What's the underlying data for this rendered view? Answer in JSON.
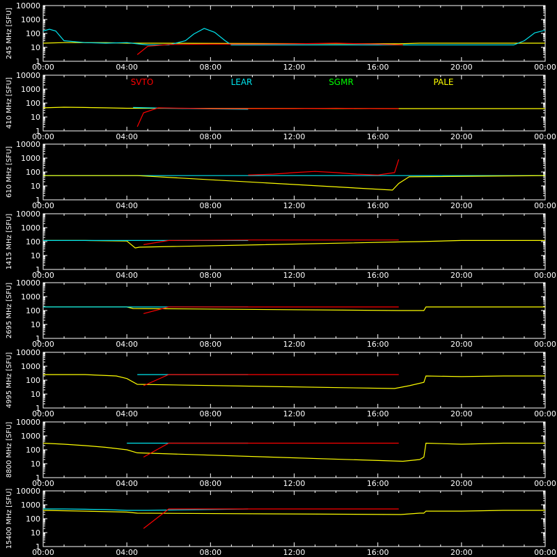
{
  "chart_data": {
    "type": "line",
    "y_scale": "log",
    "ylim": [
      1,
      10000
    ],
    "y_ticks": [
      1,
      10,
      100,
      1000,
      10000
    ],
    "y_tick_labels": [
      "1",
      "10",
      "100",
      "1000",
      "10000"
    ],
    "x_ticks": [
      "00:00",
      "04:00",
      "08:00",
      "12:00",
      "16:00",
      "20:00",
      "00:00"
    ],
    "stations": [
      {
        "name": "SVTO",
        "color": "#ff0000"
      },
      {
        "name": "LEAR",
        "color": "#00e5ee"
      },
      {
        "name": "SGMR",
        "color": "#00ff00"
      },
      {
        "name": "PALE",
        "color": "#ffff00"
      }
    ],
    "panels": [
      {
        "ylabel": "245 MHz [SFU]",
        "series": [
          {
            "station": "PALE",
            "x": [
              0.0,
              1.0,
              2.0,
              3.0,
              4.0,
              4.5,
              17.0,
              18.0,
              20.0,
              22.0,
              23.0,
              24.0
            ],
            "y": [
              20,
              22,
              22,
              22,
              20,
              20,
              18,
              20,
              20,
              20,
              20,
              20
            ]
          },
          {
            "station": "LEAR",
            "x": [
              0.0,
              0.3,
              0.6,
              1.0,
              2.0,
              3.0,
              4.0,
              4.5,
              5.0,
              6.0,
              6.8,
              7.2,
              7.7,
              8.2,
              8.7,
              9.0,
              10.0,
              22.5,
              23.0,
              23.5,
              24.0
            ],
            "y": [
              150,
              200,
              150,
              30,
              22,
              20,
              22,
              18,
              15,
              15,
              30,
              90,
              230,
              120,
              30,
              15,
              15,
              15,
              30,
              110,
              170
            ]
          },
          {
            "station": "SVTO",
            "x": [
              4.5,
              5.0,
              6.0,
              8.0,
              10.0,
              12.0,
              14.0,
              16.0,
              17.2
            ],
            "y": [
              3,
              12,
              16,
              17,
              17,
              18,
              20,
              17,
              15
            ]
          }
        ]
      },
      {
        "ylabel": "410 MHz [SFU]",
        "series": [
          {
            "station": "PALE",
            "x": [
              0.0,
              1.0,
              2.0,
              3.0,
              4.0,
              4.3,
              17.2,
              18.0,
              20.0,
              22.0,
              24.0
            ],
            "y": [
              45,
              50,
              48,
              45,
              42,
              42,
              40,
              40,
              40,
              40,
              40
            ]
          },
          {
            "station": "LEAR",
            "x": [
              4.3,
              5.0,
              6.0,
              8.0,
              9.8
            ],
            "y": [
              48,
              45,
              42,
              38,
              36
            ]
          },
          {
            "station": "SVTO",
            "x": [
              4.5,
              4.8,
              5.5,
              8.0,
              10.0,
              12.0,
              14.0,
              16.0,
              17.0
            ],
            "y": [
              2,
              20,
              45,
              40,
              40,
              40,
              42,
              40,
              40
            ]
          }
        ]
      },
      {
        "ylabel": "610 MHz [SFU]",
        "series": [
          {
            "station": "LEAR",
            "x": [
              0.0,
              2.0,
              4.0,
              6.0,
              8.0,
              9.8,
              17.5,
              20.0,
              22.0,
              24.0
            ],
            "y": [
              55,
              55,
              55,
              55,
              55,
              55,
              55,
              55,
              55,
              55
            ]
          },
          {
            "station": "SVTO",
            "x": [
              9.8,
              11.0,
              12.0,
              13.0,
              14.0,
              15.0,
              16.0,
              16.8,
              17.0
            ],
            "y": [
              60,
              70,
              90,
              110,
              90,
              70,
              60,
              90,
              800
            ]
          },
          {
            "station": "PALE",
            "x": [
              0.0,
              4.0,
              4.5,
              16.7,
              17.0,
              17.5,
              24.0
            ],
            "y": [
              55,
              55,
              55,
              5,
              15,
              45,
              55
            ]
          }
        ]
      },
      {
        "ylabel": "1415 MHz [SFU]",
        "series": [
          {
            "station": "PALE",
            "x": [
              0.0,
              2.0,
              4.0,
              4.4,
              4.6,
              17.2,
              18.0,
              20.0,
              22.0,
              24.0
            ],
            "y": [
              120,
              120,
              110,
              35,
              40,
              95,
              100,
              120,
              120,
              120
            ]
          },
          {
            "station": "LEAR",
            "x": [
              0.0,
              4.0,
              6.0,
              8.0,
              9.8
            ],
            "y": [
              120,
              120,
              120,
              120,
              120
            ]
          },
          {
            "station": "SVTO",
            "x": [
              4.8,
              6.0,
              10.0,
              12.0,
              14.0,
              16.0,
              17.0
            ],
            "y": [
              60,
              120,
              130,
              130,
              130,
              130,
              130
            ]
          }
        ]
      },
      {
        "ylabel": "2695 MHz [SFU]",
        "series": [
          {
            "station": "PALE",
            "x": [
              0.0,
              2.0,
              4.0,
              4.3,
              17.0,
              17.5,
              18.2,
              18.3,
              20.0,
              22.0,
              24.0
            ],
            "y": [
              180,
              180,
              180,
              140,
              100,
              100,
              100,
              180,
              180,
              180,
              180
            ]
          },
          {
            "station": "LEAR",
            "x": [
              0.0,
              4.0,
              6.0,
              8.0,
              9.8
            ],
            "y": [
              180,
              180,
              180,
              180,
              180
            ]
          },
          {
            "station": "SVTO",
            "x": [
              4.8,
              6.0,
              10.0,
              12.0,
              14.0,
              16.0,
              17.0
            ],
            "y": [
              60,
              180,
              180,
              180,
              180,
              180,
              180
            ]
          }
        ]
      },
      {
        "ylabel": "4995 MHz [SFU]",
        "series": [
          {
            "station": "PALE",
            "x": [
              0.0,
              2.0,
              3.5,
              4.0,
              4.5,
              16.8,
              17.5,
              18.2,
              18.3,
              20.0,
              22.0,
              24.0
            ],
            "y": [
              250,
              250,
              200,
              130,
              50,
              25,
              40,
              70,
              200,
              180,
              200,
              200
            ]
          },
          {
            "station": "LEAR",
            "x": [
              4.5,
              5.0,
              6.0,
              8.0,
              9.8
            ],
            "y": [
              250,
              250,
              250,
              250,
              250
            ]
          },
          {
            "station": "SVTO",
            "x": [
              4.8,
              6.0,
              10.0,
              12.0,
              14.0,
              16.0,
              17.0
            ],
            "y": [
              40,
              250,
              250,
              250,
              250,
              250,
              250
            ]
          }
        ]
      },
      {
        "ylabel": "8800 MHz [SFU]",
        "series": [
          {
            "station": "PALE",
            "x": [
              0.0,
              1.0,
              2.0,
              3.0,
              4.0,
              4.5,
              17.2,
              18.0,
              18.2,
              18.3,
              20.0,
              22.0,
              24.0
            ],
            "y": [
              300,
              250,
              200,
              150,
              100,
              60,
              15,
              20,
              30,
              300,
              250,
              300,
              300
            ]
          },
          {
            "station": "LEAR",
            "x": [
              4.0,
              5.0,
              6.0,
              8.0,
              9.8
            ],
            "y": [
              300,
              300,
              300,
              300,
              300
            ]
          },
          {
            "station": "SVTO",
            "x": [
              4.8,
              6.0,
              10.0,
              12.0,
              14.0,
              16.0,
              17.0
            ],
            "y": [
              30,
              300,
              300,
              300,
              300,
              300,
              300
            ]
          }
        ]
      },
      {
        "ylabel": "15400 MHz [SFU]",
        "series": [
          {
            "station": "LEAR",
            "x": [
              0.0,
              1.0,
              2.0,
              3.0,
              4.0,
              5.0,
              9.8
            ],
            "y": [
              500,
              500,
              480,
              450,
              400,
              400,
              500
            ]
          },
          {
            "station": "PALE",
            "x": [
              0.0,
              2.0,
              4.0,
              4.5,
              17.1,
              18.0,
              18.2,
              18.3,
              20.0,
              22.0,
              24.0
            ],
            "y": [
              400,
              350,
              300,
              250,
              200,
              250,
              250,
              350,
              350,
              400,
              400
            ]
          },
          {
            "station": "SVTO",
            "x": [
              4.8,
              6.0,
              10.0,
              12.0,
              14.0,
              16.0,
              17.0
            ],
            "y": [
              20,
              500,
              500,
              500,
              500,
              500,
              500
            ]
          }
        ]
      }
    ]
  }
}
